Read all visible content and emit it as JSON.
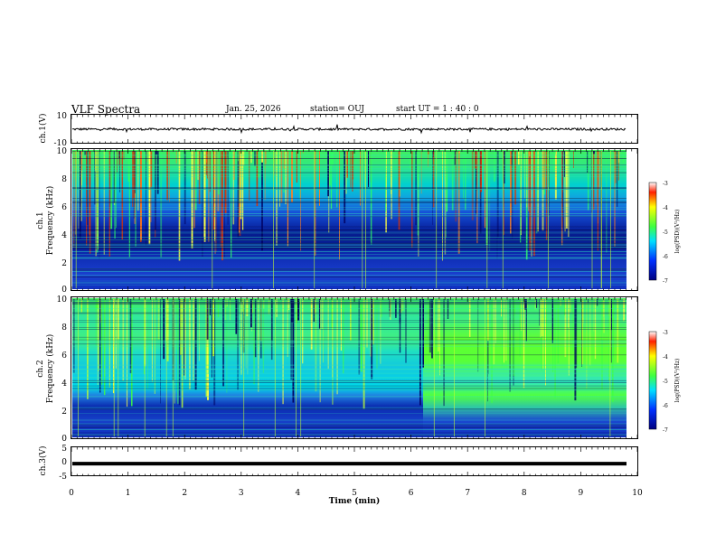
{
  "header": {
    "title": "VLF Spectra",
    "date": "Jan. 25, 2026",
    "station": "station= OUJ",
    "start_ut": "start  UT =   1 : 40 : 0"
  },
  "chart_data": [
    {
      "type": "line",
      "panel": "ch1-waveform",
      "ylabel": "ch.1(V)",
      "yticks": [
        "10",
        "-10"
      ],
      "ylim": [
        -10,
        10
      ],
      "x_range_min": [
        0,
        9.8
      ],
      "description_level": 0
    },
    {
      "type": "heatmap",
      "panel": "ch1-spectrogram",
      "ylabel_top": "ch.1",
      "ylabel": "Frequency  (kHz)",
      "yticks": [
        "0",
        "2",
        "4",
        "6",
        "8",
        "10"
      ],
      "ylim": [
        0,
        10
      ],
      "colorbar": {
        "label": "log(PSD)(V²/Hz)",
        "ticks": [
          "-3",
          "-4",
          "-5",
          "-6",
          "-7"
        ],
        "range": [
          -7,
          -3
        ]
      }
    },
    {
      "type": "heatmap",
      "panel": "ch2-spectrogram",
      "ylabel_top": "ch.2",
      "ylabel": "Frequency  (kHz)",
      "yticks": [
        "0",
        "2",
        "4",
        "6",
        "8",
        "10"
      ],
      "ylim": [
        0,
        10
      ],
      "colorbar": {
        "label": "log(PSD)(V²/Hz)",
        "ticks": [
          "-3",
          "-4",
          "-5",
          "-6",
          "-7"
        ],
        "range": [
          -7,
          -3
        ]
      }
    },
    {
      "type": "line",
      "panel": "ch3-waveform",
      "ylabel": "ch.3(V)",
      "yticks": [
        "5",
        "0",
        "-5"
      ],
      "ylim": [
        -5,
        5
      ],
      "level": -0.7
    }
  ],
  "xaxis": {
    "label": "Time  (min)",
    "ticks": [
      "0",
      "1",
      "2",
      "3",
      "4",
      "5",
      "6",
      "7",
      "8",
      "9",
      "10"
    ],
    "xlim": [
      0,
      10
    ]
  },
  "colors": {
    "spectro_low": "#0a1a9c",
    "spectro_mid": "#00c8d8",
    "spectro_high": "#40ff30",
    "axis": "#000000"
  }
}
